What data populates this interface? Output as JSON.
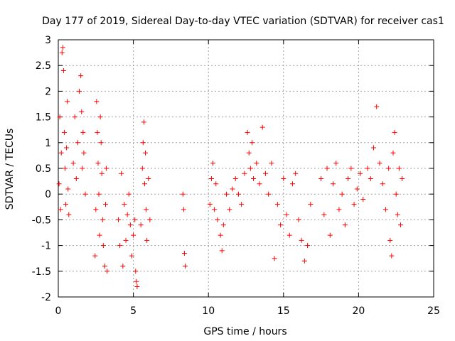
{
  "chart_data": {
    "type": "scatter",
    "title": "Day 177 of 2019, Sidereal Day-to-day VTEC variation (SDTVAR) for receiver cas1",
    "xlabel": "GPS time / hours",
    "ylabel": "SDTVAR / TECUs",
    "xlim": [
      0,
      25
    ],
    "ylim": [
      -2,
      3
    ],
    "xticks": [
      0,
      5,
      10,
      15,
      20,
      25
    ],
    "xtick_labels": [
      "0",
      "5",
      "10",
      "15",
      "20",
      "25"
    ],
    "yticks": [
      -2,
      -1.5,
      -1,
      -0.5,
      0,
      0.5,
      1,
      1.5,
      2,
      2.5,
      3
    ],
    "ytick_labels": [
      "-2",
      "-1.5",
      "-1",
      "-0.5",
      "0",
      "0.5",
      "1",
      "1.5",
      "2",
      "2.5",
      "3"
    ],
    "grid": true,
    "marker": "+",
    "color": "#ff0000",
    "series": [
      {
        "name": "SDTVAR",
        "points": [
          [
            0.05,
            0.2
          ],
          [
            0.1,
            1.5
          ],
          [
            0.15,
            -0.3
          ],
          [
            0.2,
            0.8
          ],
          [
            0.25,
            2.75
          ],
          [
            0.3,
            2.85
          ],
          [
            0.35,
            2.4
          ],
          [
            0.4,
            1.2
          ],
          [
            0.45,
            0.5
          ],
          [
            0.5,
            -0.2
          ],
          [
            0.55,
            0.9
          ],
          [
            0.6,
            1.8
          ],
          [
            0.65,
            0.1
          ],
          [
            0.7,
            -0.4
          ],
          [
            1.0,
            0.6
          ],
          [
            1.1,
            1.5
          ],
          [
            1.2,
            0.3
          ],
          [
            1.3,
            1.0
          ],
          [
            1.4,
            2.0
          ],
          [
            1.5,
            2.3
          ],
          [
            1.55,
            1.6
          ],
          [
            1.6,
            0.5
          ],
          [
            1.65,
            1.2
          ],
          [
            1.7,
            0.8
          ],
          [
            1.8,
            0.0
          ],
          [
            2.5,
            -0.3
          ],
          [
            2.55,
            1.8
          ],
          [
            2.6,
            1.2
          ],
          [
            2.65,
            0.6
          ],
          [
            2.7,
            0.0
          ],
          [
            2.75,
            -0.8
          ],
          [
            2.8,
            1.5
          ],
          [
            2.85,
            1.0
          ],
          [
            2.9,
            0.4
          ],
          [
            2.95,
            -0.5
          ],
          [
            3.0,
            -1.0
          ],
          [
            3.1,
            -1.4
          ],
          [
            3.15,
            -0.2
          ],
          [
            3.2,
            0.5
          ],
          [
            3.25,
            -1.5
          ],
          [
            2.45,
            -1.2
          ],
          [
            4.0,
            -0.5
          ],
          [
            4.1,
            -1.0
          ],
          [
            4.2,
            0.4
          ],
          [
            4.3,
            -1.4
          ],
          [
            4.4,
            -0.2
          ],
          [
            4.5,
            -0.9
          ],
          [
            4.6,
            -0.4
          ],
          [
            4.7,
            0.0
          ],
          [
            4.8,
            -0.6
          ],
          [
            4.9,
            -1.2
          ],
          [
            5.0,
            -0.8
          ],
          [
            5.1,
            -0.5
          ],
          [
            5.15,
            -1.5
          ],
          [
            5.2,
            -1.7
          ],
          [
            5.25,
            -1.8
          ],
          [
            5.5,
            -0.6
          ],
          [
            5.6,
            0.5
          ],
          [
            5.65,
            1.0
          ],
          [
            5.7,
            1.4
          ],
          [
            5.75,
            0.2
          ],
          [
            5.8,
            0.8
          ],
          [
            5.85,
            -0.3
          ],
          [
            5.9,
            -0.9
          ],
          [
            6.0,
            0.3
          ],
          [
            6.1,
            -0.5
          ],
          [
            8.3,
            0.0
          ],
          [
            8.35,
            -0.3
          ],
          [
            8.4,
            -1.15
          ],
          [
            8.45,
            -1.4
          ],
          [
            10.1,
            -0.2
          ],
          [
            10.2,
            0.3
          ],
          [
            10.3,
            0.6
          ],
          [
            10.4,
            -0.3
          ],
          [
            10.5,
            0.2
          ],
          [
            10.6,
            -0.5
          ],
          [
            10.8,
            -0.8
          ],
          [
            10.9,
            -1.1
          ],
          [
            11.0,
            -0.6
          ],
          [
            11.2,
            0.0
          ],
          [
            11.4,
            -0.3
          ],
          [
            11.6,
            0.1
          ],
          [
            11.8,
            0.3
          ],
          [
            12.0,
            0.0
          ],
          [
            12.2,
            -0.2
          ],
          [
            12.4,
            0.4
          ],
          [
            12.6,
            1.2
          ],
          [
            12.7,
            0.8
          ],
          [
            12.8,
            0.5
          ],
          [
            12.9,
            1.0
          ],
          [
            13.0,
            0.3
          ],
          [
            13.2,
            0.6
          ],
          [
            13.4,
            0.2
          ],
          [
            13.6,
            1.3
          ],
          [
            13.8,
            0.4
          ],
          [
            14.0,
            0.0
          ],
          [
            14.2,
            0.6
          ],
          [
            14.4,
            -1.25
          ],
          [
            14.6,
            -0.2
          ],
          [
            14.8,
            -0.6
          ],
          [
            15.0,
            0.3
          ],
          [
            15.2,
            -0.4
          ],
          [
            15.4,
            -0.8
          ],
          [
            15.6,
            0.2
          ],
          [
            15.8,
            0.4
          ],
          [
            16.0,
            -0.5
          ],
          [
            16.2,
            -0.9
          ],
          [
            16.4,
            -1.3
          ],
          [
            16.6,
            -1.0
          ],
          [
            16.8,
            -0.2
          ],
          [
            17.5,
            0.3
          ],
          [
            17.7,
            -0.4
          ],
          [
            17.9,
            0.5
          ],
          [
            18.1,
            -0.8
          ],
          [
            18.3,
            0.2
          ],
          [
            18.5,
            0.6
          ],
          [
            18.7,
            -0.3
          ],
          [
            18.9,
            0.0
          ],
          [
            19.1,
            -0.6
          ],
          [
            19.3,
            0.3
          ],
          [
            19.5,
            0.5
          ],
          [
            19.7,
            -0.2
          ],
          [
            19.9,
            0.1
          ],
          [
            20.1,
            0.4
          ],
          [
            20.3,
            -0.1
          ],
          [
            20.6,
            0.5
          ],
          [
            20.8,
            0.3
          ],
          [
            21.0,
            0.9
          ],
          [
            21.2,
            1.7
          ],
          [
            21.4,
            0.6
          ],
          [
            21.6,
            0.2
          ],
          [
            21.8,
            -0.3
          ],
          [
            22.0,
            0.5
          ],
          [
            22.1,
            -0.9
          ],
          [
            22.2,
            -1.2
          ],
          [
            22.3,
            0.8
          ],
          [
            22.4,
            1.2
          ],
          [
            22.5,
            0.0
          ],
          [
            22.6,
            -0.4
          ],
          [
            22.7,
            0.5
          ],
          [
            22.8,
            -0.6
          ],
          [
            22.9,
            0.3
          ]
        ]
      }
    ]
  }
}
